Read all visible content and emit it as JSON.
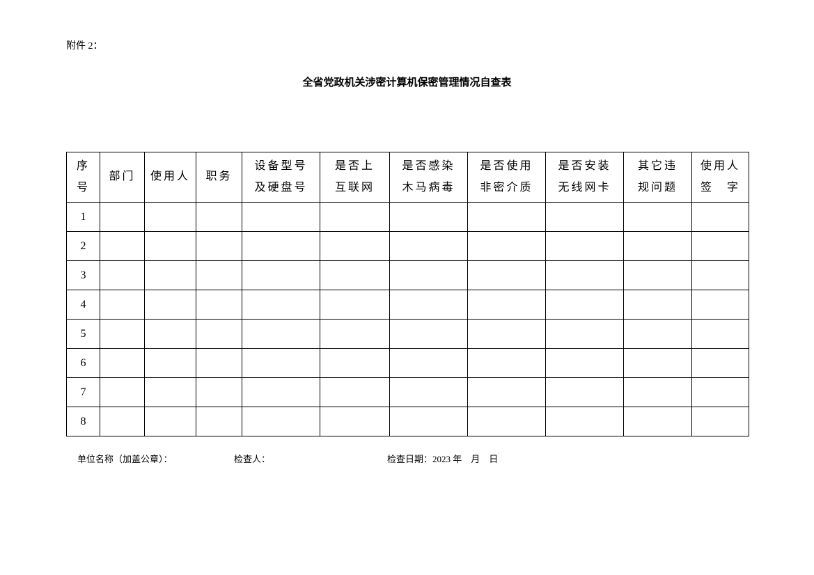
{
  "attachment_label": "附件 2：",
  "title": "全省党政机关涉密计算机保密管理情况自查表",
  "table": {
    "columns": [
      {
        "line1": "序",
        "line2": "号",
        "class": "col-seq"
      },
      {
        "line1": "部门",
        "line2": "",
        "class": "col-dept"
      },
      {
        "line1": "使用人",
        "line2": "",
        "class": "col-user"
      },
      {
        "line1": "职务",
        "line2": "",
        "class": "col-job"
      },
      {
        "line1": "设备型号",
        "line2": "及硬盘号",
        "class": "col-device"
      },
      {
        "line1": "是否上",
        "line2": "互联网",
        "class": "col-internet"
      },
      {
        "line1": "是否感染",
        "line2": "木马病毒",
        "class": "col-virus"
      },
      {
        "line1": "是否使用",
        "line2": "非密介质",
        "class": "col-media"
      },
      {
        "line1": "是否安装",
        "line2": "无线网卡",
        "class": "col-wifi"
      },
      {
        "line1": "其它违",
        "line2": "规问题",
        "class": "col-other"
      },
      {
        "line1": "使用人",
        "line2": "签　字",
        "class": "col-sign"
      }
    ],
    "rows": [
      {
        "seq": "1",
        "cells": [
          "",
          "",
          "",
          "",
          "",
          "",
          "",
          "",
          "",
          ""
        ]
      },
      {
        "seq": "2",
        "cells": [
          "",
          "",
          "",
          "",
          "",
          "",
          "",
          "",
          "",
          ""
        ]
      },
      {
        "seq": "3",
        "cells": [
          "",
          "",
          "",
          "",
          "",
          "",
          "",
          "",
          "",
          ""
        ]
      },
      {
        "seq": "4",
        "cells": [
          "",
          "",
          "",
          "",
          "",
          "",
          "",
          "",
          "",
          ""
        ]
      },
      {
        "seq": "5",
        "cells": [
          "",
          "",
          "",
          "",
          "",
          "",
          "",
          "",
          "",
          ""
        ]
      },
      {
        "seq": "6",
        "cells": [
          "",
          "",
          "",
          "",
          "",
          "",
          "",
          "",
          "",
          ""
        ]
      },
      {
        "seq": "7",
        "cells": [
          "",
          "",
          "",
          "",
          "",
          "",
          "",
          "",
          "",
          ""
        ]
      },
      {
        "seq": "8",
        "cells": [
          "",
          "",
          "",
          "",
          "",
          "",
          "",
          "",
          "",
          ""
        ]
      }
    ]
  },
  "footer": {
    "unit_label": "单位名称（加盖公章）：",
    "inspector_label": "检查人：",
    "date_label": "检查日期：2023 年　月　日"
  }
}
